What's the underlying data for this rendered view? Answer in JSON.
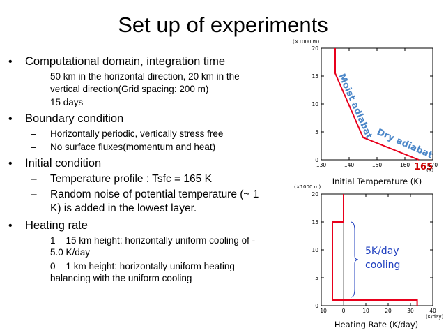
{
  "slide": {
    "title": "Set up of experiments"
  },
  "bullets": [
    {
      "text": "Computational domain, integration time",
      "subs": [
        {
          "text": "50 km in the horizontal direction, 20 km in the vertical direction(Grid spacing: 200 m)"
        },
        {
          "text": "15 days"
        }
      ]
    },
    {
      "text": "Boundary condition",
      "subs": [
        {
          "text": "Horizontally periodic, vertically stress free"
        },
        {
          "text": "No surface fluxes(momentum and heat)"
        }
      ]
    },
    {
      "text": "Initial condition",
      "subs": [
        {
          "text": "Temperature profile : Tsfc = 165 K"
        },
        {
          "text": "Random noise of potential temperature (~ 1 K) is added in the lowest layer."
        }
      ]
    },
    {
      "text": "Heating rate",
      "subs": [
        {
          "text": "1 – 15 km height: horizontally uniform cooling of - 5.0 K/day"
        },
        {
          "text": "0 – 1 km height: horizontally uniform heating balancing with the uniform cooling"
        }
      ]
    }
  ],
  "chart_data": [
    {
      "type": "line",
      "xlabel": "Initial Temperature (K)",
      "x_unit": "(K)",
      "y_unit": "(×1000 m)",
      "xlim": [
        130,
        170
      ],
      "ylim": [
        0,
        20
      ],
      "xticks": [
        "130",
        "140",
        "150",
        "160",
        "170"
      ],
      "yticks": [
        "0",
        "5",
        "10",
        "15",
        "20"
      ],
      "series": [
        {
          "color": "#e8001c",
          "x": [
            165,
            145,
            135,
            135
          ],
          "y": [
            0,
            4,
            15.5,
            20
          ]
        }
      ],
      "annotations": [
        {
          "text": "Moist adiabat",
          "color": "#4a86c8"
        },
        {
          "text": "Dry adiabat",
          "color": "#4a86c8"
        },
        {
          "text": "165",
          "color": "#cc0000"
        }
      ]
    },
    {
      "type": "line",
      "xlabel": "Heating Rate (K/day)",
      "x_unit": "(K/day)",
      "y_unit": "(×1000 m)",
      "xlim": [
        -10,
        40
      ],
      "ylim": [
        0,
        20
      ],
      "xticks": [
        "−10",
        "0",
        "10",
        "20",
        "30",
        "40"
      ],
      "yticks": [
        "0",
        "5",
        "10",
        "15",
        "20"
      ],
      "series": [
        {
          "color": "#e8001c",
          "x": [
            0,
            0,
            -5,
            -5,
            33,
            33
          ],
          "y": [
            20,
            15,
            15,
            1,
            1,
            0
          ]
        }
      ],
      "annotations": [
        {
          "text": "5K/day\ncooling",
          "line1": "5K/day",
          "line2": "cooling",
          "color": "#1f3fbf"
        }
      ]
    }
  ]
}
